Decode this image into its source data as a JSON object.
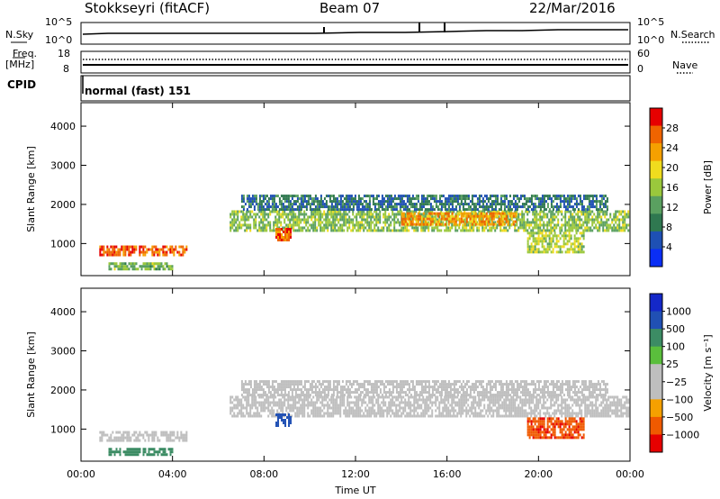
{
  "header": {
    "radar": "Stokkseyri (fitACF)",
    "beam": "Beam 07",
    "date": "22/Mar/2016"
  },
  "strip": {
    "nsky_label": "N.Sky",
    "nsky_ticks": [
      "10^5",
      "10^0"
    ],
    "nsearch_label": "N.Search",
    "freq_label_1": "Freq.",
    "freq_label_2": "[MHz]",
    "freq_ticks": [
      "18",
      "8"
    ],
    "nave_ticks": [
      "60",
      "0"
    ],
    "nave_label": "Nave",
    "cpid_label": "CPID",
    "cpid_value": "normal (fast) 151"
  },
  "colors": {
    "power_scale": [
      "#0a2ef5",
      "#1e50b4",
      "#2f7850",
      "#5aa060",
      "#9ac83c",
      "#f0dc1e",
      "#f5a000",
      "#f06400",
      "#e60000"
    ],
    "velocity_scale": [
      "#e60000",
      "#f05a00",
      "#f5a000",
      "#bebebe",
      "#bebebe",
      "#5abe3c",
      "#3c8c64",
      "#2050b4",
      "#1428c8"
    ]
  },
  "chart_data": [
    {
      "type": "heatmap",
      "panel": "power",
      "ylabel": "Slant Range [km]",
      "xlabel": "Time UT",
      "x_ticks": [
        "00:00",
        "04:00",
        "08:00",
        "12:00",
        "16:00",
        "20:00",
        "00:00"
      ],
      "y_ticks": [
        "1000",
        "2000",
        "3000",
        "4000"
      ],
      "xlim": [
        0,
        24
      ],
      "ylim": [
        180,
        4600
      ],
      "colorbar_label": "Power [dB]",
      "colorbar_ticks": [
        "4",
        "8",
        "12",
        "16",
        "20",
        "24",
        "28"
      ],
      "regions": [
        {
          "t": [
            0.8,
            4.6
          ],
          "r": [
            700,
            950
          ],
          "power": 27
        },
        {
          "t": [
            1.2,
            4.0
          ],
          "r": [
            350,
            520
          ],
          "power": 14
        },
        {
          "t": [
            6.5,
            23.9
          ],
          "r": [
            1350,
            1850
          ],
          "power": 15
        },
        {
          "t": [
            8.5,
            9.2
          ],
          "r": [
            1100,
            1400
          ],
          "power": 26
        },
        {
          "t": [
            19.5,
            22.0
          ],
          "r": [
            800,
            1300
          ],
          "power": 17
        },
        {
          "t": [
            7.0,
            23.0
          ],
          "r": [
            1900,
            2250
          ],
          "power": 8
        },
        {
          "t": [
            14.0,
            19.0
          ],
          "r": [
            1500,
            1800
          ],
          "power": 24
        }
      ]
    },
    {
      "type": "heatmap",
      "panel": "velocity",
      "ylabel": "Slant Range [km]",
      "xlabel": "Time UT",
      "x_ticks": [
        "00:00",
        "04:00",
        "08:00",
        "12:00",
        "16:00",
        "20:00",
        "00:00"
      ],
      "y_ticks": [
        "1000",
        "2000",
        "3000",
        "4000"
      ],
      "xlim": [
        0,
        24
      ],
      "ylim": [
        180,
        4600
      ],
      "colorbar_label": "Velocity [m s⁻¹]",
      "colorbar_ticks": [
        "1000",
        "500",
        "100",
        "25",
        "−25",
        "−100",
        "−500",
        "−1000"
      ],
      "regions": [
        {
          "t": [
            0.8,
            4.6
          ],
          "r": [
            700,
            950
          ],
          "velocity": 0
        },
        {
          "t": [
            1.2,
            4.0
          ],
          "r": [
            350,
            520
          ],
          "velocity": 150
        },
        {
          "t": [
            6.5,
            23.9
          ],
          "r": [
            1350,
            1850
          ],
          "velocity": 0
        },
        {
          "t": [
            8.5,
            9.2
          ],
          "r": [
            1100,
            1400
          ],
          "velocity": 800
        },
        {
          "t": [
            19.5,
            22.0
          ],
          "r": [
            800,
            1300
          ],
          "velocity": -400
        },
        {
          "t": [
            7.0,
            23.0
          ],
          "r": [
            1900,
            2250
          ],
          "velocity": 0
        }
      ]
    }
  ]
}
